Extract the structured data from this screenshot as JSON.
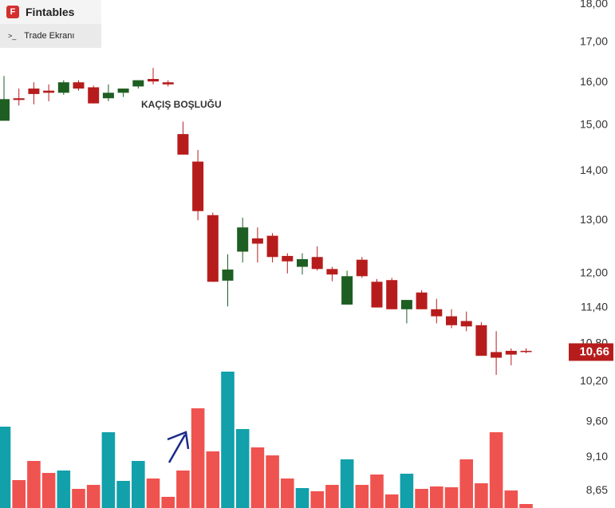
{
  "header": {
    "brand": "Fintables",
    "tab": "Trade Ekranı"
  },
  "chart_data": {
    "type": "candlestick",
    "log_scale": true,
    "ylim": [
      8.43,
      18.11
    ],
    "yticks": [
      {
        "value": 18,
        "label": "18,00"
      },
      {
        "value": 17,
        "label": "17,00"
      },
      {
        "value": 16,
        "label": "16,00"
      },
      {
        "value": 15,
        "label": "15,00"
      },
      {
        "value": 14,
        "label": "14,00"
      },
      {
        "value": 13,
        "label": "13,00"
      },
      {
        "value": 12,
        "label": "12,00"
      },
      {
        "value": 11.4,
        "label": "11,40"
      },
      {
        "value": 10.8,
        "label": "10,80"
      },
      {
        "value": 10.2,
        "label": "10,20"
      },
      {
        "value": 9.6,
        "label": "9,60"
      },
      {
        "value": 9.1,
        "label": "9,10"
      },
      {
        "value": 8.65,
        "label": "8,65"
      }
    ],
    "last_price": {
      "value": 10.66,
      "label": "10,66"
    },
    "annotation": "KAÇIŞ BOŞLUĞU",
    "up_color": "#1e5e22",
    "down_color": "#b71c1c",
    "volume_up_color": "#12a0ab",
    "volume_down_color": "#ef5350",
    "open": [
      15.1,
      15.62,
      15.85,
      15.8,
      15.75,
      16.0,
      15.88,
      15.62,
      15.75,
      15.9,
      16.08,
      16.0,
      14.8,
      14.2,
      13.1,
      11.87,
      12.4,
      12.65,
      12.7,
      12.32,
      12.12,
      12.3,
      12.08,
      11.45,
      12.25,
      11.85,
      11.88,
      11.37,
      11.66,
      11.37,
      11.25,
      11.17,
      11.1,
      10.66,
      10.68,
      10.68
    ],
    "high": [
      16.15,
      15.85,
      16.0,
      15.95,
      16.05,
      16.05,
      15.92,
      15.95,
      15.85,
      16.05,
      16.35,
      16.05,
      15.08,
      14.45,
      13.15,
      12.35,
      13.05,
      12.86,
      12.75,
      12.37,
      12.37,
      12.5,
      12.12,
      12.05,
      12.3,
      11.9,
      11.92,
      11.53,
      11.7,
      11.55,
      11.37,
      11.33,
      11.15,
      11.0,
      10.72,
      10.72
    ],
    "low": [
      15.1,
      15.45,
      15.48,
      15.55,
      15.7,
      15.8,
      15.5,
      15.55,
      15.65,
      15.85,
      15.95,
      15.9,
      14.35,
      13.0,
      11.85,
      11.42,
      12.2,
      12.2,
      12.2,
      12.0,
      11.98,
      12.05,
      11.86,
      11.45,
      11.92,
      11.4,
      11.37,
      11.13,
      11.37,
      11.13,
      11.05,
      11.0,
      10.6,
      10.3,
      10.45,
      10.64
    ],
    "close": [
      15.6,
      15.58,
      15.72,
      15.75,
      16.0,
      15.85,
      15.5,
      15.75,
      15.85,
      16.05,
      16.02,
      15.95,
      14.35,
      13.18,
      11.85,
      12.07,
      12.86,
      12.55,
      12.3,
      12.22,
      12.26,
      12.08,
      11.98,
      11.95,
      11.95,
      11.4,
      11.37,
      11.53,
      11.37,
      11.25,
      11.1,
      11.08,
      10.6,
      10.57,
      10.62,
      10.66
    ],
    "volume": [
      102,
      35,
      59,
      44,
      47,
      24,
      29,
      95,
      34,
      59,
      37,
      14,
      47,
      125,
      71,
      171,
      99,
      76,
      66,
      37,
      25,
      21,
      29,
      61,
      29,
      42,
      17,
      43,
      24,
      27,
      26,
      61,
      31,
      95,
      22,
      5
    ]
  }
}
